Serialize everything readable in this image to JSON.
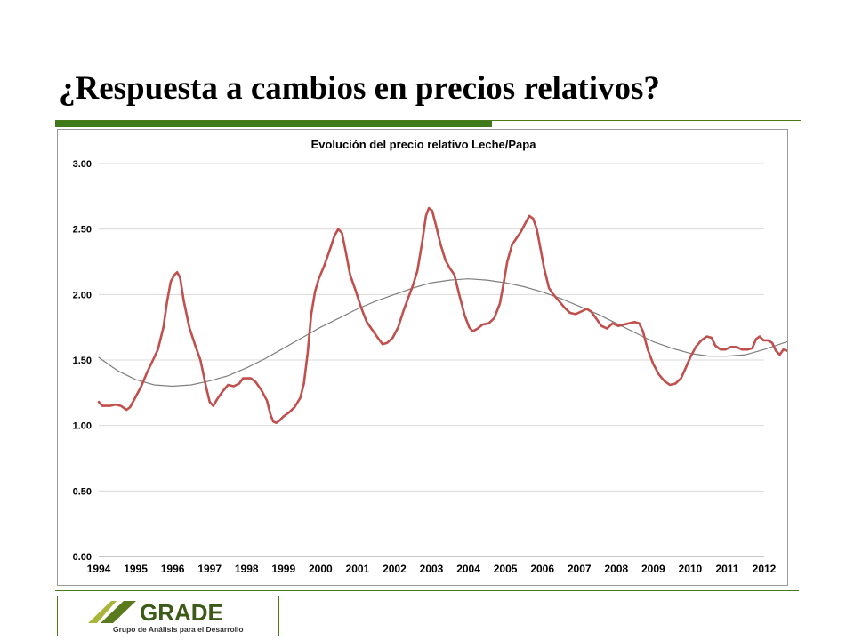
{
  "slide": {
    "title": "¿Respuesta a cambios en precios relativos?"
  },
  "logo": {
    "name": "GRADE",
    "tagline": "Grupo de Análisis para el Desarrollo"
  },
  "colors": {
    "accent_green": "#3f7a1a",
    "series_actual": "#c0504d",
    "series_trend": "#7f7f7f",
    "gridline": "#d9d9d9"
  },
  "chart_data": {
    "type": "line",
    "title": "Evolución del precio relativo Leche/Papa",
    "xlabel": "",
    "ylabel": "",
    "ylim": [
      0,
      3
    ],
    "y_ticks": [
      "0.00",
      "0.50",
      "1.00",
      "1.50",
      "2.00",
      "2.50",
      "3.00"
    ],
    "x_ticks": [
      "1994",
      "1995",
      "1996",
      "1997",
      "1998",
      "1999",
      "2000",
      "2001",
      "2002",
      "2003",
      "2004",
      "2005",
      "2006",
      "2007",
      "2008",
      "2009",
      "2010",
      "2011",
      "2012"
    ],
    "grid": true,
    "legend": "none",
    "series": [
      {
        "role": "actual",
        "points": [
          [
            1994.0,
            1.18
          ],
          [
            1994.1,
            1.15
          ],
          [
            1994.3,
            1.15
          ],
          [
            1994.45,
            1.16
          ],
          [
            1994.6,
            1.15
          ],
          [
            1994.75,
            1.12
          ],
          [
            1994.85,
            1.14
          ],
          [
            1995.0,
            1.22
          ],
          [
            1995.15,
            1.3
          ],
          [
            1995.3,
            1.4
          ],
          [
            1995.45,
            1.49
          ],
          [
            1995.6,
            1.58
          ],
          [
            1995.75,
            1.75
          ],
          [
            1995.85,
            1.95
          ],
          [
            1995.95,
            2.1
          ],
          [
            1996.05,
            2.15
          ],
          [
            1996.12,
            2.17
          ],
          [
            1996.2,
            2.13
          ],
          [
            1996.3,
            1.95
          ],
          [
            1996.45,
            1.75
          ],
          [
            1996.6,
            1.62
          ],
          [
            1996.75,
            1.5
          ],
          [
            1996.9,
            1.3
          ],
          [
            1997.0,
            1.18
          ],
          [
            1997.1,
            1.15
          ],
          [
            1997.2,
            1.2
          ],
          [
            1997.35,
            1.26
          ],
          [
            1997.5,
            1.31
          ],
          [
            1997.65,
            1.3
          ],
          [
            1997.8,
            1.32
          ],
          [
            1997.9,
            1.36
          ],
          [
            1998.0,
            1.36
          ],
          [
            1998.12,
            1.36
          ],
          [
            1998.25,
            1.33
          ],
          [
            1998.4,
            1.27
          ],
          [
            1998.55,
            1.19
          ],
          [
            1998.65,
            1.08
          ],
          [
            1998.72,
            1.03
          ],
          [
            1998.8,
            1.02
          ],
          [
            1998.9,
            1.04
          ],
          [
            1999.0,
            1.07
          ],
          [
            1999.15,
            1.1
          ],
          [
            1999.3,
            1.14
          ],
          [
            1999.45,
            1.21
          ],
          [
            1999.55,
            1.32
          ],
          [
            1999.65,
            1.55
          ],
          [
            1999.75,
            1.85
          ],
          [
            1999.85,
            2.02
          ],
          [
            1999.95,
            2.12
          ],
          [
            2000.1,
            2.22
          ],
          [
            2000.25,
            2.34
          ],
          [
            2000.38,
            2.45
          ],
          [
            2000.48,
            2.5
          ],
          [
            2000.58,
            2.47
          ],
          [
            2000.68,
            2.33
          ],
          [
            2000.8,
            2.15
          ],
          [
            2000.95,
            2.03
          ],
          [
            2001.1,
            1.9
          ],
          [
            2001.25,
            1.79
          ],
          [
            2001.4,
            1.73
          ],
          [
            2001.55,
            1.67
          ],
          [
            2001.68,
            1.62
          ],
          [
            2001.8,
            1.63
          ],
          [
            2001.95,
            1.67
          ],
          [
            2002.1,
            1.75
          ],
          [
            2002.25,
            1.88
          ],
          [
            2002.38,
            1.98
          ],
          [
            2002.5,
            2.07
          ],
          [
            2002.62,
            2.18
          ],
          [
            2002.75,
            2.4
          ],
          [
            2002.85,
            2.6
          ],
          [
            2002.93,
            2.66
          ],
          [
            2003.02,
            2.64
          ],
          [
            2003.12,
            2.53
          ],
          [
            2003.25,
            2.38
          ],
          [
            2003.38,
            2.26
          ],
          [
            2003.5,
            2.2
          ],
          [
            2003.62,
            2.15
          ],
          [
            2003.75,
            2.0
          ],
          [
            2003.9,
            1.84
          ],
          [
            2004.02,
            1.75
          ],
          [
            2004.12,
            1.72
          ],
          [
            2004.25,
            1.74
          ],
          [
            2004.38,
            1.77
          ],
          [
            2004.55,
            1.78
          ],
          [
            2004.7,
            1.82
          ],
          [
            2004.85,
            1.93
          ],
          [
            2004.95,
            2.08
          ],
          [
            2005.05,
            2.25
          ],
          [
            2005.18,
            2.38
          ],
          [
            2005.3,
            2.43
          ],
          [
            2005.42,
            2.48
          ],
          [
            2005.55,
            2.55
          ],
          [
            2005.65,
            2.6
          ],
          [
            2005.75,
            2.58
          ],
          [
            2005.85,
            2.5
          ],
          [
            2005.95,
            2.35
          ],
          [
            2006.05,
            2.2
          ],
          [
            2006.18,
            2.05
          ],
          [
            2006.3,
            2.0
          ],
          [
            2006.45,
            1.95
          ],
          [
            2006.6,
            1.9
          ],
          [
            2006.75,
            1.86
          ],
          [
            2006.9,
            1.85
          ],
          [
            2007.05,
            1.87
          ],
          [
            2007.2,
            1.89
          ],
          [
            2007.32,
            1.87
          ],
          [
            2007.45,
            1.82
          ],
          [
            2007.6,
            1.76
          ],
          [
            2007.75,
            1.74
          ],
          [
            2007.9,
            1.78
          ],
          [
            2008.05,
            1.76
          ],
          [
            2008.2,
            1.77
          ],
          [
            2008.35,
            1.78
          ],
          [
            2008.5,
            1.79
          ],
          [
            2008.62,
            1.78
          ],
          [
            2008.72,
            1.72
          ],
          [
            2008.85,
            1.58
          ],
          [
            2009.0,
            1.47
          ],
          [
            2009.15,
            1.39
          ],
          [
            2009.3,
            1.34
          ],
          [
            2009.45,
            1.31
          ],
          [
            2009.6,
            1.32
          ],
          [
            2009.75,
            1.36
          ],
          [
            2009.88,
            1.44
          ],
          [
            2010.0,
            1.52
          ],
          [
            2010.15,
            1.6
          ],
          [
            2010.3,
            1.65
          ],
          [
            2010.45,
            1.68
          ],
          [
            2010.58,
            1.67
          ],
          [
            2010.68,
            1.61
          ],
          [
            2010.82,
            1.58
          ],
          [
            2010.95,
            1.58
          ],
          [
            2011.1,
            1.6
          ],
          [
            2011.25,
            1.6
          ],
          [
            2011.4,
            1.58
          ],
          [
            2011.55,
            1.58
          ],
          [
            2011.68,
            1.59
          ],
          [
            2011.78,
            1.66
          ],
          [
            2011.88,
            1.68
          ],
          [
            2011.98,
            1.65
          ],
          [
            2012.1,
            1.65
          ],
          [
            2012.22,
            1.63
          ],
          [
            2012.32,
            1.57
          ],
          [
            2012.42,
            1.54
          ],
          [
            2012.52,
            1.58
          ],
          [
            2012.62,
            1.57
          ]
        ]
      },
      {
        "role": "trend",
        "points": [
          [
            1994.0,
            1.52
          ],
          [
            1994.5,
            1.42
          ],
          [
            1995.0,
            1.35
          ],
          [
            1995.5,
            1.31
          ],
          [
            1996.0,
            1.3
          ],
          [
            1996.5,
            1.31
          ],
          [
            1997.0,
            1.34
          ],
          [
            1997.5,
            1.38
          ],
          [
            1998.0,
            1.44
          ],
          [
            1998.5,
            1.51
          ],
          [
            1999.0,
            1.59
          ],
          [
            1999.5,
            1.67
          ],
          [
            2000.0,
            1.75
          ],
          [
            2000.5,
            1.82
          ],
          [
            2001.0,
            1.89
          ],
          [
            2001.5,
            1.95
          ],
          [
            2002.0,
            2.0
          ],
          [
            2002.5,
            2.05
          ],
          [
            2003.0,
            2.09
          ],
          [
            2003.5,
            2.11
          ],
          [
            2004.0,
            2.12
          ],
          [
            2004.5,
            2.11
          ],
          [
            2005.0,
            2.09
          ],
          [
            2005.5,
            2.06
          ],
          [
            2006.0,
            2.02
          ],
          [
            2006.5,
            1.97
          ],
          [
            2007.0,
            1.91
          ],
          [
            2007.5,
            1.85
          ],
          [
            2008.0,
            1.78
          ],
          [
            2008.5,
            1.71
          ],
          [
            2009.0,
            1.64
          ],
          [
            2009.5,
            1.59
          ],
          [
            2010.0,
            1.55
          ],
          [
            2010.5,
            1.53
          ],
          [
            2011.0,
            1.53
          ],
          [
            2011.5,
            1.54
          ],
          [
            2012.0,
            1.58
          ],
          [
            2012.62,
            1.64
          ]
        ]
      }
    ]
  }
}
